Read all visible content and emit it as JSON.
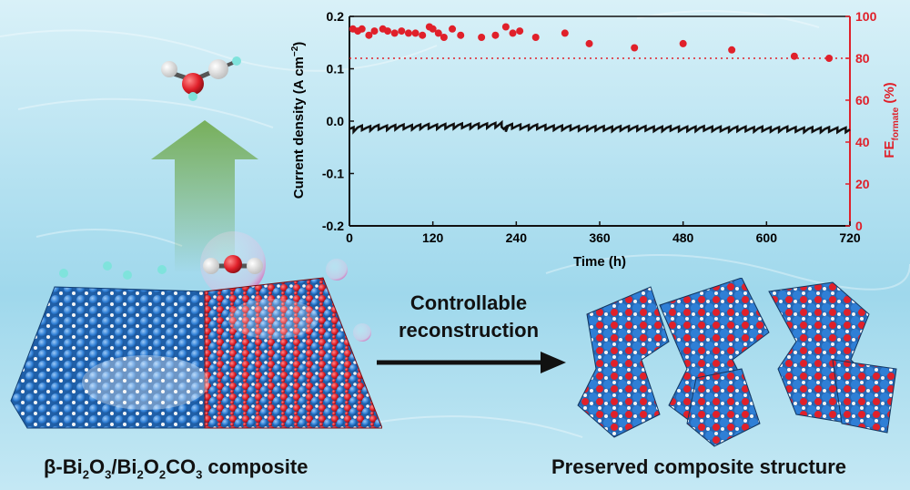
{
  "labels": {
    "left_caption_prefix": "β-Bi",
    "left_sub1": "2",
    "left_mid1": "O",
    "left_sub2": "3",
    "left_mid2": "/Bi",
    "left_sub3": "2",
    "left_mid3": "O",
    "left_sub4": "2",
    "left_mid4": "CO",
    "left_sub5": "3",
    "left_suffix": " composite",
    "arrow_line1": "Controllable",
    "arrow_line2": "reconstruction",
    "right_caption": "Preserved composite structure"
  },
  "colors": {
    "bi_atom": "#2f7fd6",
    "oxygen_atom": "#e0202a",
    "hydrogen_atom": "#f2f2f2",
    "carbon_atom": "#3a3a3a",
    "fe_axis": "#e0202a",
    "product_arrow": "#5d9c3a"
  },
  "chart_data": {
    "type": "scatter",
    "xlabel": "Time (h)",
    "ylabel_left": "Current density (A cm⁻²)",
    "ylabel_left_parts": {
      "main": "Current density (A cm",
      "sup": "−2",
      "end": ")"
    },
    "ylabel_right_parts": {
      "main": "FE",
      "sub": "formate",
      "end": " (%)"
    },
    "xlim": [
      0,
      720
    ],
    "x_ticks": [
      "0",
      "120",
      "240",
      "360",
      "480",
      "600",
      "720"
    ],
    "ylim_left": [
      -0.2,
      0.2
    ],
    "y_left_ticks": [
      "-0.2",
      "-0.1",
      "0.0",
      "0.1",
      "0.2"
    ],
    "ylim_right": [
      0,
      100
    ],
    "y_right_ticks": [
      "0",
      "20",
      "40",
      "60",
      "80",
      "100"
    ],
    "series": [
      {
        "axis": "left",
        "style": "line",
        "x": [
          0,
          12,
          24,
          36,
          48,
          60,
          72,
          84,
          96,
          108,
          120,
          132,
          144,
          156,
          168,
          180,
          192,
          204,
          216,
          222,
          228,
          240,
          252,
          264,
          276,
          288,
          300,
          312,
          324,
          336,
          348,
          360,
          372,
          384,
          396,
          408,
          420,
          432,
          444,
          456,
          468,
          480,
          492,
          504,
          516,
          528,
          540,
          552,
          564,
          576,
          588,
          600,
          612,
          624,
          636,
          648,
          660,
          672,
          684,
          696,
          708,
          720
        ],
        "y": [
          -0.015,
          -0.012,
          -0.013,
          -0.011,
          -0.012,
          -0.011,
          -0.01,
          -0.011,
          -0.01,
          -0.009,
          -0.01,
          -0.009,
          -0.009,
          -0.008,
          -0.009,
          -0.008,
          -0.008,
          -0.007,
          -0.006,
          -0.015,
          -0.009,
          -0.01,
          -0.011,
          -0.01,
          -0.011,
          -0.012,
          -0.012,
          -0.012,
          -0.013,
          -0.013,
          -0.013,
          -0.013,
          -0.014,
          -0.013,
          -0.013,
          -0.013,
          -0.013,
          -0.014,
          -0.014,
          -0.013,
          -0.014,
          -0.014,
          -0.014,
          -0.013,
          -0.014,
          -0.014,
          -0.015,
          -0.014,
          -0.014,
          -0.015,
          -0.014,
          -0.015,
          -0.015,
          -0.014,
          -0.015,
          -0.016,
          -0.015,
          -0.016,
          -0.015,
          -0.016,
          -0.016,
          -0.016
        ]
      },
      {
        "axis": "right",
        "style": "points",
        "x": [
          5,
          12,
          18,
          28,
          36,
          48,
          55,
          65,
          75,
          85,
          95,
          105,
          115,
          120,
          128,
          136,
          148,
          160,
          190,
          210,
          225,
          235,
          245,
          268,
          310,
          345,
          410,
          480,
          550,
          640,
          690
        ],
        "y": [
          94,
          93,
          94,
          91,
          93,
          94,
          93,
          92,
          93,
          92,
          92,
          91,
          95,
          94,
          92,
          90,
          94,
          91,
          90,
          91,
          95,
          92,
          93,
          90,
          92,
          87,
          85,
          87,
          84,
          81,
          80
        ]
      }
    ],
    "reference_line": {
      "axis": "right",
      "y": 80,
      "style": "dotted"
    }
  }
}
